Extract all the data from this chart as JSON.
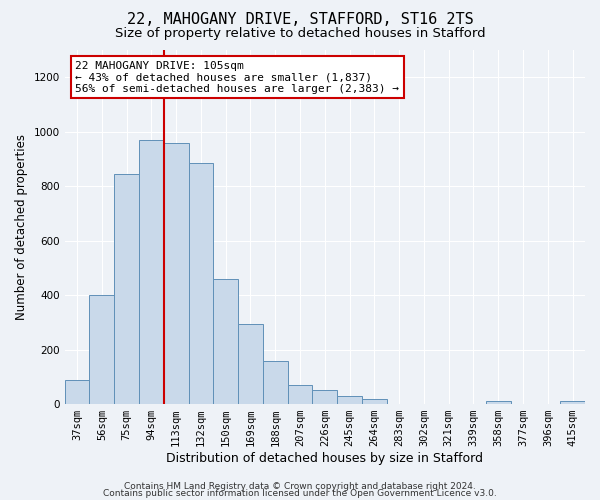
{
  "title": "22, MAHOGANY DRIVE, STAFFORD, ST16 2TS",
  "subtitle": "Size of property relative to detached houses in Stafford",
  "xlabel": "Distribution of detached houses by size in Stafford",
  "ylabel": "Number of detached properties",
  "bar_labels": [
    "37sqm",
    "56sqm",
    "75sqm",
    "94sqm",
    "113sqm",
    "132sqm",
    "150sqm",
    "169sqm",
    "188sqm",
    "207sqm",
    "226sqm",
    "245sqm",
    "264sqm",
    "283sqm",
    "302sqm",
    "321sqm",
    "339sqm",
    "358sqm",
    "377sqm",
    "396sqm",
    "415sqm"
  ],
  "bar_values": [
    90,
    400,
    845,
    970,
    960,
    885,
    460,
    295,
    160,
    70,
    50,
    30,
    20,
    0,
    0,
    0,
    0,
    10,
    0,
    0,
    10
  ],
  "bar_color": "#c9d9ea",
  "bar_edge_color": "#6090b8",
  "vline_x_idx": 4,
  "vline_color": "#cc0000",
  "annotation_title": "22 MAHOGANY DRIVE: 105sqm",
  "annotation_line1": "← 43% of detached houses are smaller (1,837)",
  "annotation_line2": "56% of semi-detached houses are larger (2,383) →",
  "annotation_box_facecolor": "#ffffff",
  "annotation_box_edgecolor": "#cc0000",
  "ylim": [
    0,
    1300
  ],
  "yticks": [
    0,
    200,
    400,
    600,
    800,
    1000,
    1200
  ],
  "footer1": "Contains HM Land Registry data © Crown copyright and database right 2024.",
  "footer2": "Contains public sector information licensed under the Open Government Licence v3.0.",
  "bg_color": "#eef2f7",
  "grid_color": "#ffffff",
  "title_fontsize": 11,
  "subtitle_fontsize": 9.5,
  "xlabel_fontsize": 9,
  "ylabel_fontsize": 8.5,
  "tick_fontsize": 7.5,
  "annotation_fontsize": 8,
  "footer_fontsize": 6.5
}
